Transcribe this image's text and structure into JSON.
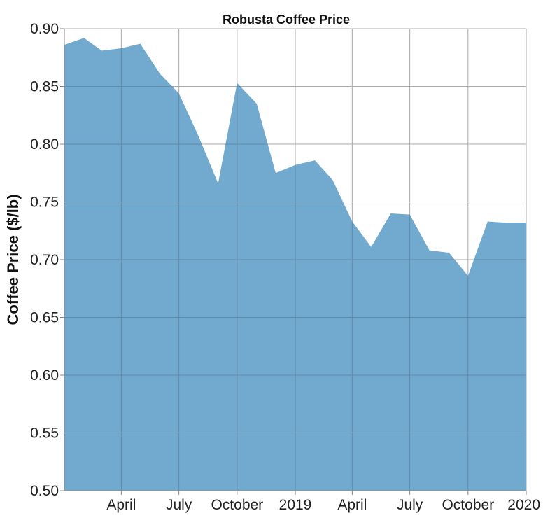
{
  "chart_data": {
    "type": "area",
    "title": "Robusta Coffee Price",
    "xlabel": "",
    "ylabel": "Coffee Price ($/lb)",
    "color": "#72a9cf",
    "grid": true,
    "xlim": [
      "2018-01-01",
      "2020-01-01"
    ],
    "ylim": [
      0.5,
      0.9
    ],
    "x_ticks": [
      {
        "date": "2018-04-01",
        "label": "April"
      },
      {
        "date": "2018-07-01",
        "label": "July"
      },
      {
        "date": "2018-10-01",
        "label": "October"
      },
      {
        "date": "2019-01-01",
        "label": "2019"
      },
      {
        "date": "2019-04-01",
        "label": "April"
      },
      {
        "date": "2019-07-01",
        "label": "July"
      },
      {
        "date": "2019-10-01",
        "label": "October"
      },
      {
        "date": "2020-01-01",
        "label": "2020"
      }
    ],
    "y_ticks": [
      0.5,
      0.55,
      0.6,
      0.65,
      0.7,
      0.75,
      0.8,
      0.85,
      0.9
    ],
    "x": [
      "2018-01-01",
      "2018-02-01",
      "2018-03-01",
      "2018-04-01",
      "2018-05-01",
      "2018-06-01",
      "2018-07-01",
      "2018-08-01",
      "2018-09-01",
      "2018-10-01",
      "2018-11-01",
      "2018-12-01",
      "2019-01-01",
      "2019-02-01",
      "2019-03-01",
      "2019-04-01",
      "2019-05-01",
      "2019-06-01",
      "2019-07-01",
      "2019-08-01",
      "2019-09-01",
      "2019-10-01",
      "2019-11-01",
      "2019-12-01",
      "2020-01-01"
    ],
    "values": [
      0.886,
      0.892,
      0.881,
      0.883,
      0.887,
      0.861,
      0.844,
      0.807,
      0.766,
      0.853,
      0.835,
      0.775,
      0.782,
      0.786,
      0.769,
      0.733,
      0.711,
      0.74,
      0.739,
      0.708,
      0.706,
      0.686,
      0.733,
      0.732,
      0.732
    ]
  }
}
